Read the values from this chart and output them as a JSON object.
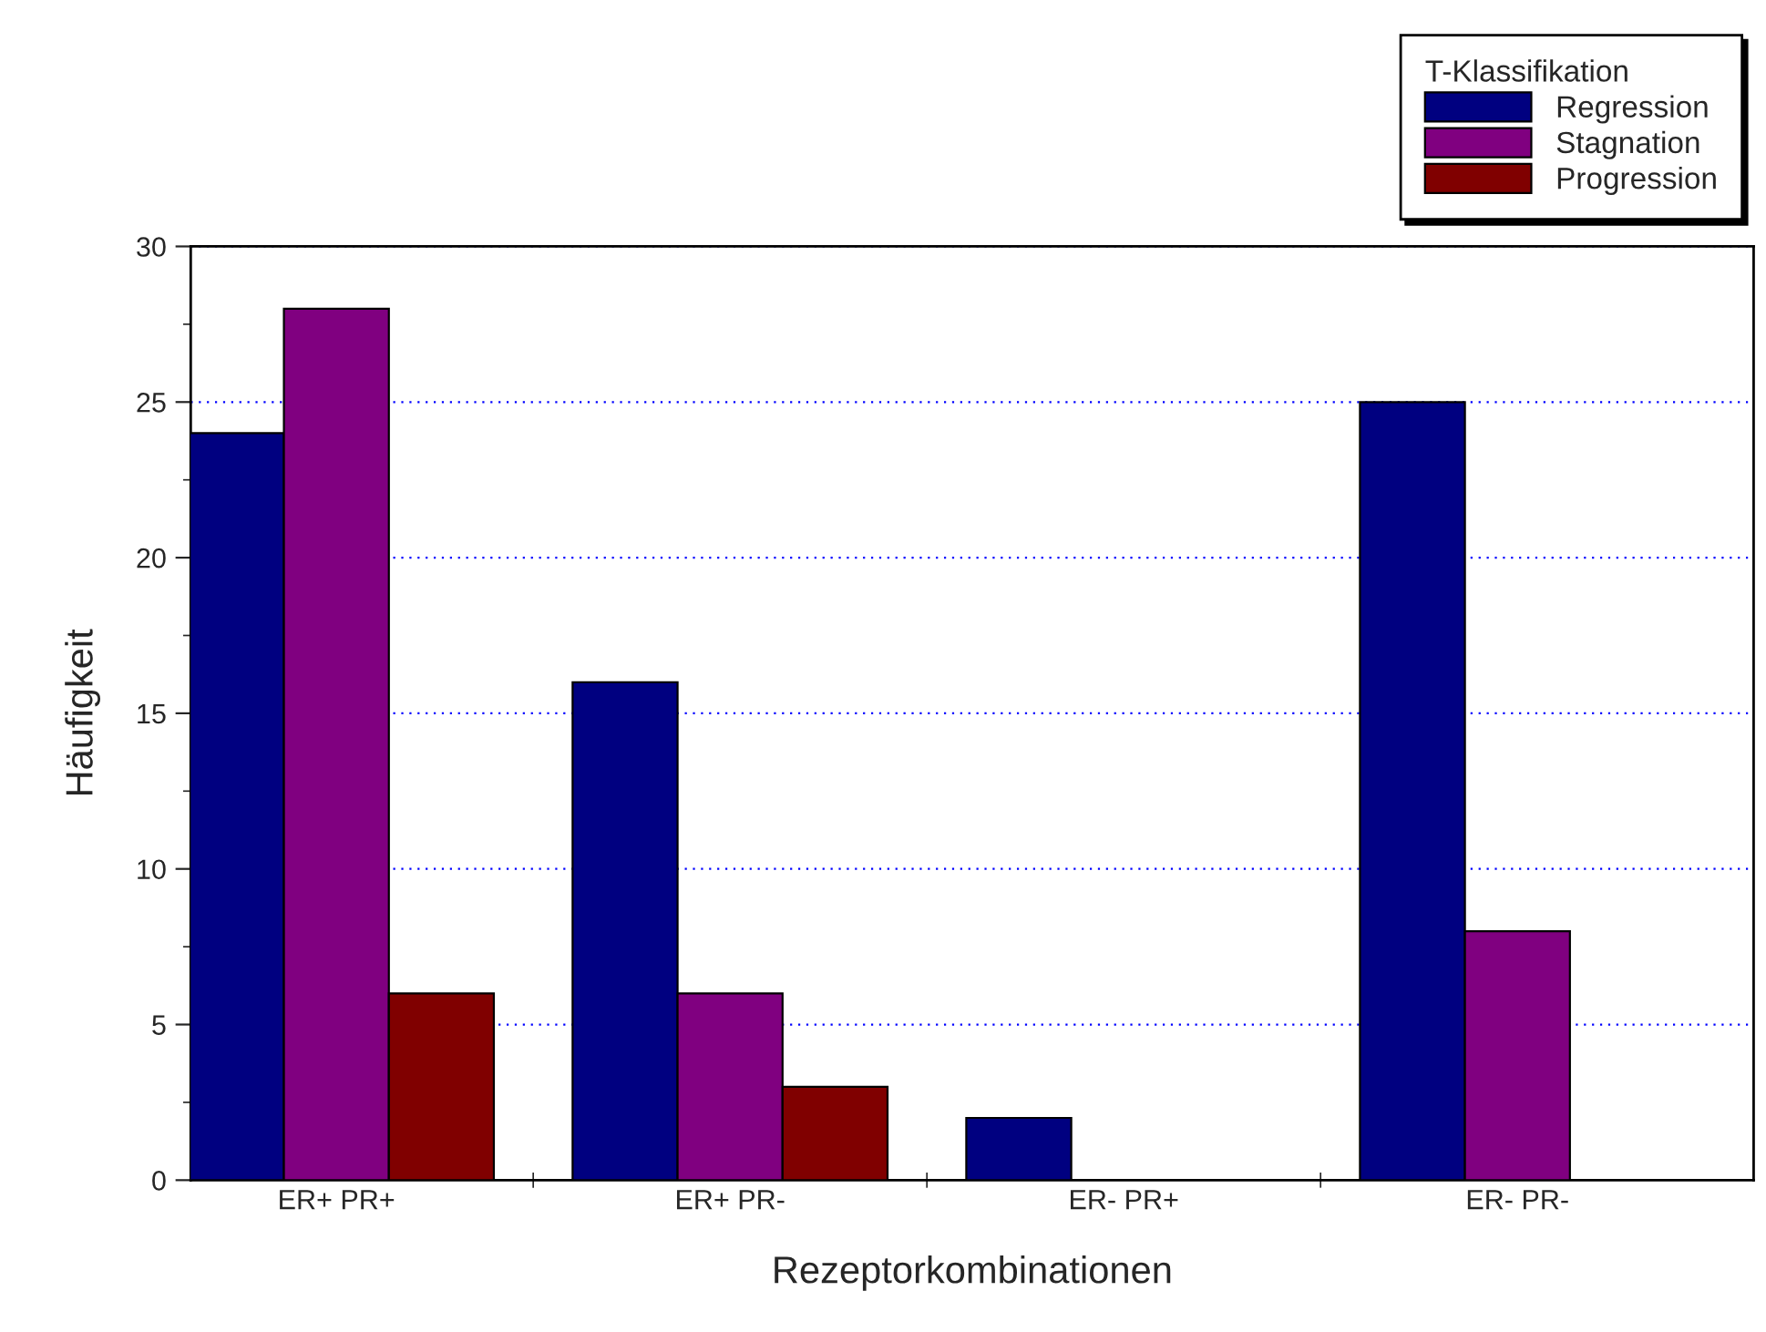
{
  "chart_data": {
    "type": "bar",
    "xlabel": "Rezeptorkombinationen",
    "ylabel": "Häufigkeit",
    "legend_title": "T-Klassifikation",
    "categories": [
      "ER+ PR+",
      "ER+ PR-",
      "ER- PR+",
      "ER- PR-"
    ],
    "series": [
      {
        "name": "Regression",
        "color": "#000080",
        "values": [
          24,
          16,
          2,
          25
        ]
      },
      {
        "name": "Stagnation",
        "color": "#800080",
        "values": [
          28,
          6,
          null,
          8
        ]
      },
      {
        "name": "Progression",
        "color": "#800000",
        "values": [
          6,
          3,
          null,
          null
        ]
      }
    ],
    "ylim": [
      0,
      30
    ],
    "yticks": [
      0,
      5,
      10,
      15,
      20,
      25,
      30
    ],
    "grid": "y",
    "legend": "top right"
  }
}
